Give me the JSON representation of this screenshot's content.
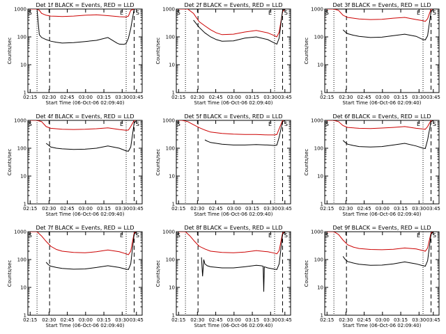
{
  "chart_data": [
    {
      "type": "line",
      "title": "Det 1f BLACK = Events, RED = LLD",
      "ylabel": "Counts/sec",
      "xlabel": "Start Time (06-Oct-06 02:09:40)",
      "x_ticks": [
        "02:15",
        "02:30",
        "02:45",
        "03:00",
        "03:15",
        "03:30",
        "03:45"
      ],
      "y_ticks": [
        "1",
        "10",
        "100",
        "1000"
      ],
      "yscale": "log",
      "ylim": [
        1,
        1000
      ],
      "edge_labels": [
        "S",
        "E",
        "S"
      ],
      "series": [
        {
          "color": "#cc0000",
          "x": [
            2,
            8,
            10,
            12,
            16,
            20,
            25,
            30,
            40,
            50,
            60,
            70,
            80,
            86,
            88,
            90,
            93,
            95
          ],
          "y": [
            1000,
            1000,
            900,
            700,
            600,
            560,
            550,
            540,
            560,
            600,
            620,
            580,
            530,
            520,
            560,
            900,
            1000,
            1000
          ]
        },
        {
          "color": "#000000",
          "x": [
            8,
            10,
            12,
            16,
            20,
            25,
            30,
            40,
            50,
            60,
            70,
            78,
            80,
            84,
            86,
            88,
            90,
            93,
            95
          ],
          "y": [
            1000,
            120,
            95,
            80,
            70,
            64,
            60,
            62,
            68,
            75,
            95,
            60,
            55,
            54,
            58,
            90,
            200,
            1000,
            1000
          ]
        }
      ]
    },
    {
      "type": "line",
      "title": "Det 2f BLACK = Events, RED = LLD",
      "ylabel": "Counts/sec",
      "xlabel": "Start Time (06-Oct-06 02:09:40)",
      "x_ticks": [
        "02:15",
        "02:30",
        "02:45",
        "03:00",
        "03:15",
        "03:30",
        "03:45"
      ],
      "y_ticks": [
        "1",
        "10",
        "100",
        "1000"
      ],
      "yscale": "log",
      "ylim": [
        1,
        1000
      ],
      "edge_labels": [
        "S",
        "E",
        "S"
      ],
      "series": [
        {
          "color": "#cc0000",
          "x": [
            2,
            5,
            10,
            15,
            20,
            25,
            30,
            35,
            40,
            50,
            60,
            70,
            80,
            86,
            88,
            90,
            93,
            95
          ],
          "y": [
            1000,
            1000,
            1000,
            700,
            350,
            250,
            180,
            140,
            120,
            125,
            150,
            170,
            140,
            110,
            100,
            150,
            800,
            1000
          ]
        },
        {
          "color": "#000000",
          "x": [
            15,
            20,
            25,
            30,
            35,
            40,
            50,
            60,
            70,
            80,
            86,
            88,
            90,
            93,
            95
          ],
          "y": [
            400,
            220,
            140,
            100,
            80,
            70,
            72,
            90,
            100,
            80,
            60,
            55,
            90,
            900,
            1000
          ]
        }
      ]
    },
    {
      "type": "line",
      "title": "Det 3f BLACK = Events, RED = LLD",
      "ylabel": "Counts/sec",
      "xlabel": "Start Time (06-Oct-06 02:09:40)",
      "x_ticks": [
        "02:15",
        "02:30",
        "02:45",
        "03:00",
        "03:15",
        "03:30",
        "03:45"
      ],
      "y_ticks": [
        "1",
        "10",
        "100",
        "1000"
      ],
      "yscale": "log",
      "ylim": [
        1,
        1000
      ],
      "edge_labels": [
        "S",
        "E",
        "S"
      ],
      "series": [
        {
          "color": "#cc0000",
          "x": [
            2,
            8,
            12,
            16,
            20,
            30,
            40,
            50,
            60,
            70,
            80,
            86,
            88,
            90,
            93,
            95
          ],
          "y": [
            1000,
            1000,
            900,
            600,
            500,
            440,
            420,
            430,
            470,
            500,
            420,
            380,
            360,
            450,
            1000,
            1000
          ]
        },
        {
          "color": "#000000",
          "x": [
            16,
            18,
            20,
            25,
            30,
            40,
            50,
            60,
            70,
            80,
            86,
            88,
            90,
            93,
            95
          ],
          "y": [
            180,
            150,
            130,
            115,
            105,
            95,
            98,
            110,
            125,
            105,
            80,
            78,
            110,
            800,
            1000
          ]
        }
      ]
    },
    {
      "type": "line",
      "title": "Det 4f BLACK = Events, RED = LLD",
      "ylabel": "Counts/sec",
      "xlabel": "Start Time (06-Oct-06 02:09:40)",
      "x_ticks": [
        "02:15",
        "02:30",
        "02:45",
        "03:00",
        "03:15",
        "03:30",
        "03:45"
      ],
      "y_ticks": [
        "1",
        "10",
        "100",
        "1000"
      ],
      "yscale": "log",
      "ylim": [
        1,
        1000
      ],
      "edge_labels": [
        "S",
        "E",
        "S"
      ],
      "series": [
        {
          "color": "#cc0000",
          "x": [
            2,
            8,
            12,
            16,
            20,
            30,
            40,
            50,
            60,
            70,
            80,
            86,
            88,
            90,
            93,
            95
          ],
          "y": [
            1000,
            1000,
            900,
            600,
            520,
            480,
            470,
            480,
            500,
            540,
            470,
            440,
            450,
            600,
            1000,
            1000
          ]
        },
        {
          "color": "#000000",
          "x": [
            16,
            18,
            20,
            25,
            30,
            40,
            50,
            60,
            70,
            80,
            86,
            88,
            90,
            93,
            95
          ],
          "y": [
            150,
            130,
            110,
            100,
            95,
            90,
            92,
            100,
            120,
            100,
            80,
            78,
            110,
            800,
            1000
          ]
        }
      ]
    },
    {
      "type": "line",
      "title": "Det 5f BLACK = Events, RED = LLD",
      "ylabel": "Counts/sec",
      "xlabel": "Start Time (06-Oct-06 02:09:40)",
      "x_ticks": [
        "02:15",
        "02:30",
        "02:45",
        "03:00",
        "03:15",
        "03:30",
        "03:45"
      ],
      "y_ticks": [
        "1",
        "10",
        "100",
        "1000"
      ],
      "yscale": "log",
      "ylim": [
        1,
        1000
      ],
      "edge_labels": [
        "S",
        "E",
        "S"
      ],
      "series": [
        {
          "color": "#cc0000",
          "x": [
            2,
            5,
            10,
            15,
            20,
            25,
            30,
            40,
            50,
            60,
            70,
            80,
            86,
            88,
            90,
            93,
            95
          ],
          "y": [
            1000,
            1000,
            900,
            700,
            550,
            450,
            380,
            340,
            320,
            310,
            310,
            300,
            300,
            310,
            500,
            1000,
            1000
          ]
        },
        {
          "color": "#000000",
          "x": [
            25,
            27,
            30,
            40,
            50,
            60,
            70,
            80,
            86,
            88,
            90,
            93,
            95
          ],
          "y": [
            200,
            180,
            160,
            140,
            130,
            130,
            135,
            130,
            125,
            130,
            250,
            900,
            1000
          ]
        }
      ]
    },
    {
      "type": "line",
      "title": "Det 6f BLACK = Events, RED = LLD",
      "ylabel": "Counts/sec",
      "xlabel": "Start Time (06-Oct-06 02:09:40)",
      "x_ticks": [
        "02:15",
        "02:30",
        "02:45",
        "03:00",
        "03:15",
        "03:30",
        "03:45"
      ],
      "y_ticks": [
        "1",
        "10",
        "100",
        "1000"
      ],
      "yscale": "log",
      "ylim": [
        1,
        1000
      ],
      "edge_labels": [
        "S",
        "E",
        "S"
      ],
      "series": [
        {
          "color": "#cc0000",
          "x": [
            2,
            8,
            12,
            16,
            20,
            30,
            40,
            50,
            60,
            70,
            80,
            86,
            88,
            90,
            93,
            95
          ],
          "y": [
            1000,
            1000,
            900,
            650,
            560,
            520,
            510,
            530,
            560,
            600,
            520,
            490,
            480,
            600,
            1000,
            1000
          ]
        },
        {
          "color": "#000000",
          "x": [
            16,
            18,
            20,
            25,
            30,
            40,
            50,
            60,
            70,
            80,
            86,
            88,
            90,
            93,
            95
          ],
          "y": [
            190,
            160,
            140,
            125,
            115,
            110,
            115,
            130,
            150,
            120,
            100,
            98,
            200,
            900,
            1000
          ]
        }
      ]
    },
    {
      "type": "line",
      "title": "Det 7f BLACK = Events, RED = LLD",
      "ylabel": "Counts/sec",
      "xlabel": "Start Time (06-Oct-06 02:09:40)",
      "x_ticks": [
        "02:15",
        "02:30",
        "02:45",
        "03:00",
        "03:15",
        "03:30",
        "03:45"
      ],
      "y_ticks": [
        "1",
        "10",
        "100",
        "1000"
      ],
      "yscale": "log",
      "ylim": [
        1,
        1000
      ],
      "edge_labels": [
        "S",
        "E",
        "S"
      ],
      "series": [
        {
          "color": "#cc0000",
          "x": [
            2,
            8,
            12,
            16,
            20,
            25,
            30,
            40,
            50,
            60,
            70,
            80,
            86,
            88,
            90,
            93,
            95
          ],
          "y": [
            1000,
            1000,
            700,
            450,
            300,
            230,
            200,
            180,
            175,
            190,
            220,
            190,
            160,
            150,
            200,
            900,
            1000
          ]
        },
        {
          "color": "#000000",
          "x": [
            16,
            18,
            20,
            25,
            30,
            40,
            50,
            60,
            70,
            80,
            86,
            88,
            90,
            93,
            95
          ],
          "y": [
            80,
            65,
            58,
            52,
            48,
            45,
            46,
            52,
            60,
            52,
            45,
            44,
            70,
            800,
            1000
          ]
        }
      ]
    },
    {
      "type": "line",
      "title": "Det 8f BLACK = Events, RED = LLD",
      "ylabel": "Counts/sec",
      "xlabel": "Start Time (06-Oct-06 02:09:40)",
      "x_ticks": [
        "02:15",
        "02:30",
        "02:45",
        "03:00",
        "03:15",
        "03:30",
        "03:45"
      ],
      "y_ticks": [
        "1",
        "10",
        "100",
        "1000"
      ],
      "yscale": "log",
      "ylim": [
        1,
        1000
      ],
      "edge_labels": [
        "S",
        "E",
        "S"
      ],
      "series": [
        {
          "color": "#cc0000",
          "x": [
            2,
            8,
            12,
            16,
            20,
            25,
            30,
            40,
            50,
            60,
            70,
            80,
            86,
            88,
            90,
            93,
            95
          ],
          "y": [
            1000,
            1000,
            700,
            450,
            300,
            240,
            200,
            180,
            175,
            185,
            210,
            190,
            170,
            160,
            210,
            900,
            1000
          ]
        },
        {
          "color": "#000000",
          "x": [
            22,
            23,
            24,
            25,
            27,
            30,
            40,
            50,
            60,
            70,
            74,
            76,
            76.5,
            77,
            80,
            86,
            88,
            90,
            93,
            95
          ],
          "y": [
            120,
            25,
            100,
            70,
            60,
            55,
            50,
            50,
            55,
            62,
            60,
            58,
            7,
            55,
            50,
            45,
            44,
            70,
            800,
            1000
          ]
        }
      ]
    },
    {
      "type": "line",
      "title": "Det 9f BLACK = Events, RED = LLD",
      "ylabel": "Counts/sec",
      "xlabel": "Start Time (06-Oct-06 02:09:40)",
      "x_ticks": [
        "02:15",
        "02:30",
        "02:45",
        "03:00",
        "03:15",
        "03:30",
        "03:45"
      ],
      "y_ticks": [
        "1",
        "10",
        "100",
        "1000"
      ],
      "yscale": "log",
      "ylim": [
        1,
        1000
      ],
      "edge_labels": [
        "S",
        "E",
        "S"
      ],
      "series": [
        {
          "color": "#cc0000",
          "x": [
            2,
            8,
            12,
            16,
            20,
            25,
            30,
            40,
            50,
            60,
            70,
            80,
            86,
            88,
            90,
            93,
            95
          ],
          "y": [
            1000,
            1000,
            800,
            500,
            340,
            280,
            250,
            230,
            225,
            235,
            260,
            240,
            210,
            200,
            260,
            900,
            1000
          ]
        },
        {
          "color": "#000000",
          "x": [
            16,
            18,
            20,
            25,
            30,
            40,
            50,
            60,
            70,
            80,
            86,
            88,
            90,
            93,
            95
          ],
          "y": [
            130,
            100,
            85,
            75,
            68,
            62,
            63,
            70,
            82,
            70,
            60,
            58,
            90,
            800,
            1000
          ]
        }
      ]
    }
  ]
}
